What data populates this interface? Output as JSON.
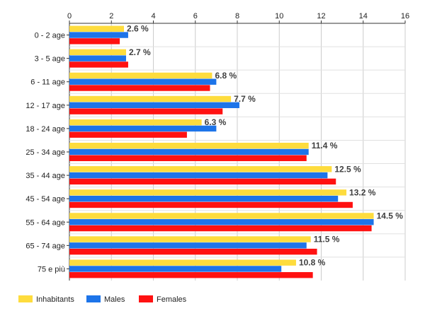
{
  "chart_data": {
    "type": "bar",
    "orientation": "horizontal",
    "categories": [
      "0 - 2 age",
      "3 - 5 age",
      "6 - 11 age",
      "12 - 17 age",
      "18 - 24 age",
      "25 - 34 age",
      "35 - 44 age",
      "45 - 54 age",
      "55 - 64 age",
      "65 - 74 age",
      "75 e più"
    ],
    "series": [
      {
        "name": "Inhabitants",
        "color": "#fedc3d",
        "values": [
          2.6,
          2.7,
          6.8,
          7.7,
          6.3,
          11.4,
          12.5,
          13.2,
          14.5,
          11.5,
          10.8
        ],
        "labels": [
          "2.6 %",
          "2.7 %",
          "6.8 %",
          "7.7 %",
          "6.3 %",
          "11.4 %",
          "12.5 %",
          "13.2 %",
          "14.5 %",
          "11.5 %",
          "10.8 %"
        ]
      },
      {
        "name": "Males",
        "color": "#1d74e9",
        "values": [
          2.8,
          2.7,
          7.0,
          8.1,
          7.0,
          11.4,
          12.3,
          12.8,
          14.5,
          11.3,
          10.1
        ]
      },
      {
        "name": "Females",
        "color": "#ff1111",
        "values": [
          2.4,
          2.8,
          6.7,
          7.3,
          5.6,
          11.3,
          12.7,
          13.5,
          14.4,
          11.8,
          11.6
        ]
      }
    ],
    "xlim": [
      0,
      16
    ],
    "xticks": [
      "0",
      "2",
      "4",
      "6",
      "8",
      "10",
      "12",
      "14",
      "16"
    ],
    "title": "",
    "xlabel": "",
    "ylabel": "",
    "grid": true,
    "xaxis_position": "top",
    "legend_placement": "bottom-left"
  }
}
